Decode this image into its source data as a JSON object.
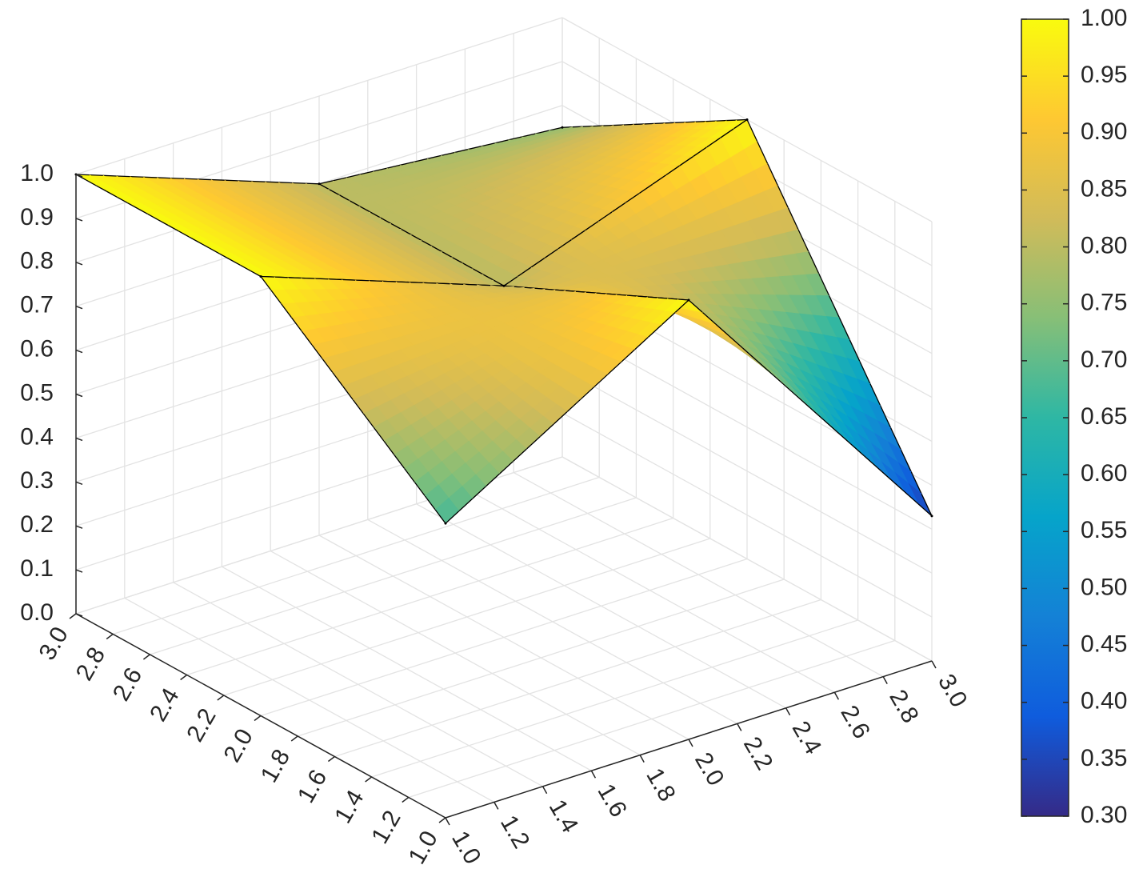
{
  "chart_data": {
    "type": "surface",
    "x": [
      1,
      2,
      3
    ],
    "y": [
      1,
      2,
      3
    ],
    "z": [
      [
        0.67,
        1.0,
        0.33
      ],
      [
        1.0,
        0.8,
        1.0
      ],
      [
        1.0,
        0.8,
        0.75
      ]
    ],
    "xlim": [
      1,
      3
    ],
    "ylim": [
      1,
      3
    ],
    "zlim": [
      0,
      1
    ],
    "xticks": [
      {
        "value": 1,
        "label": "1.0"
      },
      1.2,
      1.4,
      1.6,
      1.8,
      {
        "value": 2,
        "label": "2.0"
      },
      2.2,
      2.4,
      2.6,
      2.8,
      {
        "value": 3,
        "label": "3.0"
      }
    ],
    "yticks": [
      {
        "value": 1,
        "label": "1.0"
      },
      1.2,
      1.4,
      1.6,
      1.8,
      {
        "value": 2,
        "label": "2.0"
      },
      2.2,
      2.4,
      2.6,
      2.8,
      {
        "value": 3,
        "label": "3.0"
      }
    ],
    "zticks": [
      {
        "value": 0,
        "label": "0.0"
      },
      0.1,
      0.2,
      0.3,
      0.4,
      0.5,
      0.6,
      0.7,
      0.8,
      0.9,
      {
        "value": 1,
        "label": "1.0"
      }
    ],
    "grid": true,
    "edge_color": "#000000",
    "colormap": [
      "#352a87",
      "#0f5cdd",
      "#1481d6",
      "#06a4ca",
      "#2eb7a4",
      "#87bf77",
      "#d1bb59",
      "#fec832",
      "#f9fb0e"
    ],
    "colorbar": {
      "clim": [
        0.3,
        1
      ],
      "ticks": [
        {
          "value": 0.3,
          "label": "0.30"
        },
        0.35,
        {
          "value": 0.4,
          "label": "0.40"
        },
        0.45,
        {
          "value": 0.5,
          "label": "0.50"
        },
        0.55,
        {
          "value": 0.6,
          "label": "0.60"
        },
        0.65,
        {
          "value": 0.7,
          "label": "0.70"
        },
        0.75,
        {
          "value": 0.8,
          "label": "0.80"
        },
        0.85,
        {
          "value": 0.9,
          "label": "0.90"
        },
        0.95,
        {
          "value": 1,
          "label": "1.00"
        }
      ]
    }
  }
}
